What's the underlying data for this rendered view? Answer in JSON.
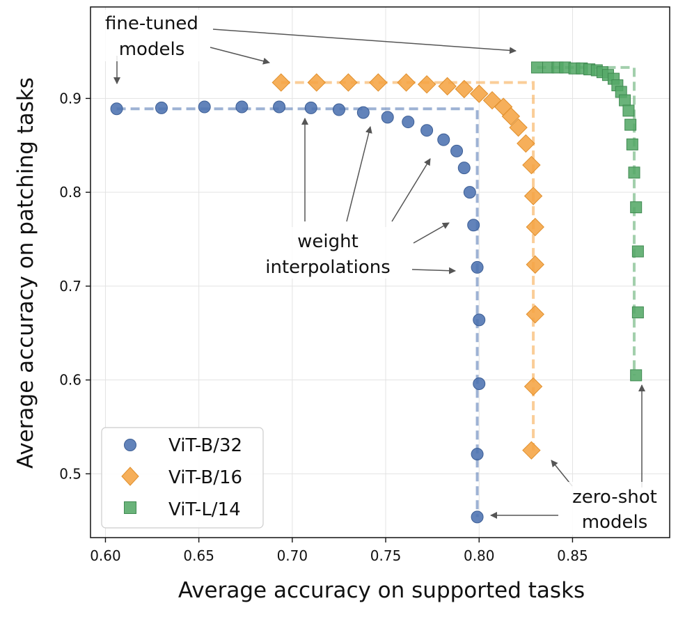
{
  "chart_data": {
    "type": "scatter",
    "xlabel": "Average accuracy on supported tasks",
    "ylabel": "Average accuracy on patching tasks",
    "xlim": [
      0.592,
      0.902
    ],
    "ylim": [
      0.432,
      0.9975
    ],
    "xticks": [
      0.6,
      0.65,
      0.7,
      0.75,
      0.8,
      0.85
    ],
    "yticks": [
      0.5,
      0.6,
      0.7,
      0.8,
      0.9
    ],
    "xtick_labels": [
      "0.60",
      "0.65",
      "0.70",
      "0.75",
      "0.80",
      "0.85"
    ],
    "ytick_labels": [
      "0.5",
      "0.6",
      "0.7",
      "0.8",
      "0.9"
    ],
    "grid": true,
    "legend_position": "lower-left",
    "series": [
      {
        "name": "ViT-B/32",
        "marker": "circle",
        "color": "#4c72b0",
        "x": [
          0.606,
          0.63,
          0.653,
          0.673,
          0.693,
          0.71,
          0.725,
          0.738,
          0.751,
          0.762,
          0.772,
          0.781,
          0.788,
          0.792,
          0.795,
          0.797,
          0.799,
          0.8,
          0.8,
          0.799,
          0.799
        ],
        "y": [
          0.889,
          0.89,
          0.891,
          0.891,
          0.891,
          0.89,
          0.888,
          0.885,
          0.88,
          0.875,
          0.866,
          0.856,
          0.844,
          0.826,
          0.8,
          0.765,
          0.72,
          0.664,
          0.596,
          0.521,
          0.454
        ],
        "frontier": {
          "x0": 0.606,
          "y_top": 0.889,
          "x_right": 0.799,
          "y_bottom": 0.454
        }
      },
      {
        "name": "ViT-B/16",
        "marker": "diamond",
        "color": "#f5a443",
        "x": [
          0.694,
          0.713,
          0.73,
          0.746,
          0.761,
          0.772,
          0.783,
          0.792,
          0.8,
          0.807,
          0.813,
          0.817,
          0.821,
          0.825,
          0.828,
          0.829,
          0.83,
          0.83,
          0.83,
          0.829,
          0.828
        ],
        "y": [
          0.917,
          0.917,
          0.917,
          0.917,
          0.917,
          0.915,
          0.913,
          0.91,
          0.905,
          0.898,
          0.891,
          0.881,
          0.869,
          0.852,
          0.829,
          0.796,
          0.763,
          0.723,
          0.67,
          0.593,
          0.525
        ],
        "frontier": {
          "x0": 0.694,
          "y_top": 0.917,
          "x_right": 0.829,
          "y_bottom": 0.525
        }
      },
      {
        "name": "ViT-L/14",
        "marker": "square",
        "color": "#55a868",
        "x": [
          0.831,
          0.837,
          0.842,
          0.846,
          0.851,
          0.855,
          0.859,
          0.863,
          0.866,
          0.869,
          0.872,
          0.874,
          0.876,
          0.878,
          0.88,
          0.881,
          0.882,
          0.883,
          0.884,
          0.885,
          0.885,
          0.884
        ],
        "y": [
          0.933,
          0.933,
          0.933,
          0.933,
          0.932,
          0.932,
          0.931,
          0.93,
          0.928,
          0.925,
          0.921,
          0.914,
          0.907,
          0.898,
          0.887,
          0.872,
          0.851,
          0.821,
          0.784,
          0.737,
          0.672,
          0.605
        ],
        "frontier": {
          "x0": 0.831,
          "y_top": 0.933,
          "x_right": 0.883,
          "y_bottom": 0.605
        }
      }
    ],
    "annotations": [
      {
        "lines": [
          "fine-tuned",
          "models"
        ]
      },
      {
        "lines": [
          "weight",
          "interpolations"
        ]
      },
      {
        "lines": [
          "zero-shot",
          "models"
        ]
      }
    ]
  }
}
